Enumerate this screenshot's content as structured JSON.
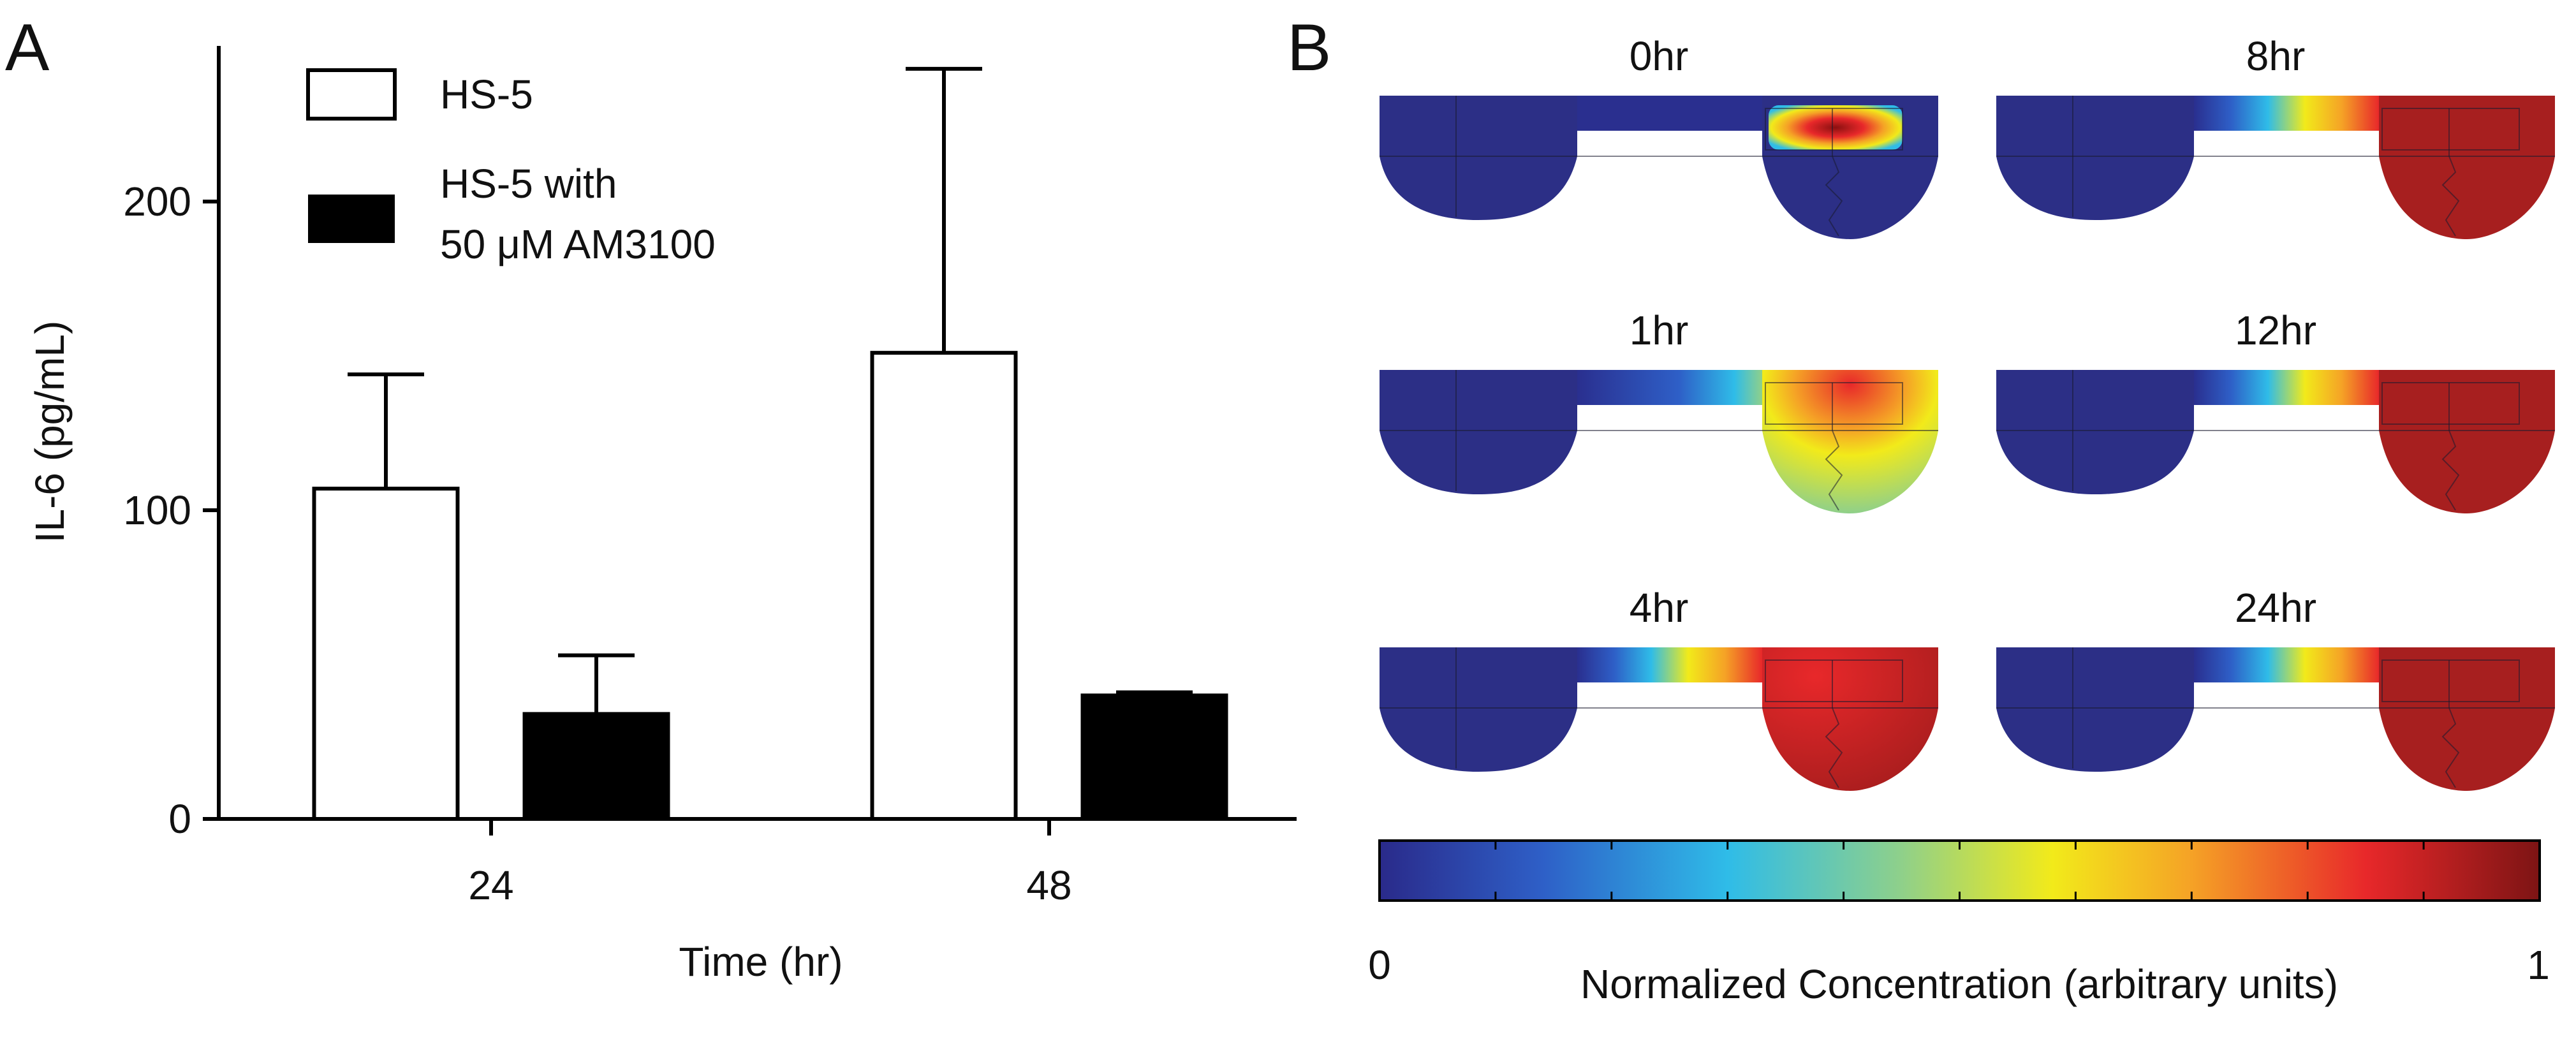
{
  "panels": {
    "a_label": "A",
    "b_label": "B"
  },
  "chart_data": [
    {
      "type": "bar",
      "title": "",
      "xlabel": "Time (hr)",
      "ylabel": "IL-6 (pg/mL)",
      "categories": [
        "24",
        "48"
      ],
      "ylim": [
        0,
        250
      ],
      "yticks": [
        "0",
        "100",
        "200"
      ],
      "legend_position": "top-left",
      "series": [
        {
          "name": "HS-5",
          "values": [
            107,
            151
          ],
          "error_upper": [
            37,
            92
          ],
          "color": "#ffffff"
        },
        {
          "name": "HS-5 with\n50 μM AM3100",
          "values": [
            34,
            40
          ],
          "error_upper": [
            19,
            1
          ],
          "color": "#000000"
        }
      ],
      "legend_lines": {
        "series1": "HS-5",
        "series2_line1": "HS-5 with",
        "series2_line2": "50 μM AM3100"
      }
    },
    {
      "type": "heatmap",
      "description_labels": {
        "colorbar_label": "Normalized Concentration (arbitrary units)",
        "colorbar_min": "0",
        "colorbar_max": "1"
      },
      "timepoints": [
        {
          "label": "0hr"
        },
        {
          "label": "8hr"
        },
        {
          "label": "1hr"
        },
        {
          "label": "12hr"
        },
        {
          "label": "4hr"
        },
        {
          "label": "24hr"
        }
      ],
      "colormap": [
        "#2a2a8a",
        "#2e5fc7",
        "#2fbce8",
        "#8fd08a",
        "#f2ea1a",
        "#f5a226",
        "#e8282a",
        "#7d1414"
      ]
    }
  ]
}
